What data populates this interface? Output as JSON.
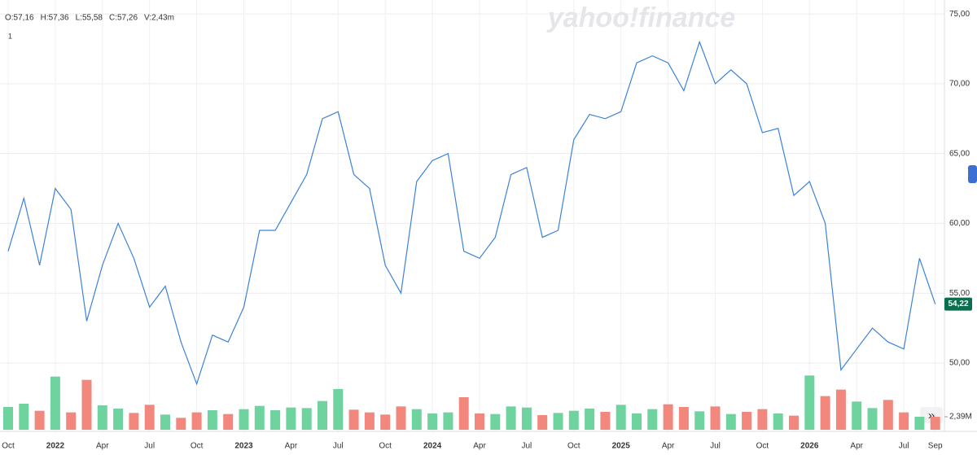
{
  "chart_data": {
    "type": "line",
    "ohlc_legend": [
      "O:57,16",
      "H:57,36",
      "L:55,58",
      "C:57,26",
      "V:2,43m"
    ],
    "interval_label": "1",
    "watermark": "yahoo!finance",
    "scroll_button": "»",
    "categories": [
      "Oct",
      null,
      null,
      "2022",
      null,
      null,
      "Apr",
      null,
      null,
      "Jul",
      null,
      null,
      "Oct",
      null,
      null,
      "2023",
      null,
      null,
      "Apr",
      null,
      null,
      "Jul",
      null,
      null,
      "Oct",
      null,
      null,
      "2024",
      null,
      null,
      "Apr",
      null,
      null,
      "Jul",
      null,
      null,
      "Oct",
      null,
      null,
      "2025",
      null,
      null,
      "Apr",
      null,
      null,
      "Jul",
      null,
      null,
      "Oct",
      null,
      null,
      "2026",
      null,
      null,
      "Apr",
      null,
      null,
      "Jul",
      null,
      "Sep"
    ],
    "series": [
      {
        "color": "#3b82d9",
        "values": [
          58,
          61.8,
          57,
          62.5,
          61,
          53,
          57,
          60,
          57.5,
          54,
          55.5,
          51.5,
          48.5,
          52,
          51.5,
          54,
          59.5,
          59.5,
          61.5,
          63.5,
          67.5,
          68,
          63.5,
          62.5,
          57,
          55,
          63,
          64.5,
          65,
          58,
          57.5,
          59,
          63.5,
          64,
          59,
          59.5,
          66,
          67.8,
          67.5,
          68,
          71.5,
          72,
          71.5,
          69.5,
          73,
          70,
          71,
          70,
          66.5,
          66.8,
          62,
          63,
          60,
          49.5,
          51,
          52.5,
          51.5,
          51,
          57.5,
          54.22
        ]
      }
    ],
    "ylim": [
      45.1,
      76
    ],
    "yticks": [
      {
        "value": 50,
        "label": "50,00"
      },
      {
        "value": 55,
        "label": "55,00"
      },
      {
        "value": 60,
        "label": "60,00"
      },
      {
        "value": 65,
        "label": "65,00"
      },
      {
        "value": 70,
        "label": "70,00"
      },
      {
        "value": 75,
        "label": "75,00"
      }
    ],
    "grid": true,
    "last_price": {
      "value": 54.22,
      "label": "54,22",
      "color": "#0b6e4f"
    },
    "volume": {
      "type": "bar",
      "up_color": "#6fd3a0",
      "down_color": "#f2877d",
      "values": [
        4.2,
        4.8,
        3.5,
        9.8,
        3.2,
        9.2,
        4.5,
        3.9,
        3.1,
        4.6,
        2.8,
        2.2,
        3.2,
        3.6,
        2.9,
        3.8,
        4.4,
        3.6,
        4.1,
        4.0,
        5.3,
        7.5,
        3.7,
        3.2,
        2.8,
        4.3,
        3.8,
        3.0,
        3.2,
        6.0,
        3.0,
        2.9,
        4.3,
        4.1,
        2.7,
        3.1,
        3.5,
        3.9,
        3.3,
        4.6,
        3.0,
        3.8,
        4.7,
        4.2,
        3.4,
        4.3,
        2.9,
        3.3,
        3.8,
        3.0,
        2.6,
        10.0,
        6.2,
        7.4,
        5.2,
        4.0,
        5.5,
        3.2,
        2.4,
        2.39
      ],
      "ylim": [
        0,
        10.5
      ],
      "yticks": [
        {
          "value": 2.39,
          "label": "2,39M"
        }
      ]
    }
  }
}
